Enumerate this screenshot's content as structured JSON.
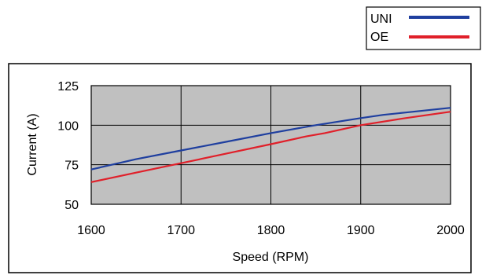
{
  "chart_data": {
    "type": "line",
    "title": "",
    "xlabel": "Speed (RPM)",
    "ylabel": "Current (A)",
    "xlim": [
      1600,
      2000
    ],
    "ylim": [
      50,
      125
    ],
    "x_ticks": [
      1600,
      1700,
      1800,
      1900,
      2000
    ],
    "y_ticks": [
      50,
      75,
      100,
      125
    ],
    "grid": true,
    "plot_background": "#c0c0c0",
    "legend_position": "top-right",
    "series": [
      {
        "name": "UNI",
        "color": "#1f3f9f",
        "x": [
          1600,
          1650,
          1700,
          1750,
          1800,
          1850,
          1900,
          1925,
          1950,
          1975,
          2000
        ],
        "y": [
          72,
          78.5,
          84,
          89.5,
          95,
          100,
          104.5,
          106.5,
          108,
          109.5,
          111
        ]
      },
      {
        "name": "OE",
        "color": "#e0202a",
        "x": [
          1600,
          1650,
          1700,
          1750,
          1800,
          1840,
          1860,
          1900,
          1950,
          2000
        ],
        "y": [
          64,
          70,
          76,
          82,
          88,
          93,
          95,
          100,
          104.5,
          108.5
        ]
      }
    ]
  }
}
